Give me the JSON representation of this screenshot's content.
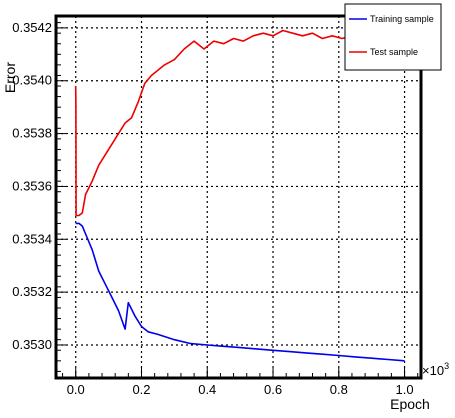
{
  "chart_data": {
    "type": "line",
    "xlabel": "Epoch",
    "ylabel": "Error",
    "x_multiplier_label": "×10",
    "x_multiplier_exponent": "3",
    "xlim": [
      -0.06,
      1.05
    ],
    "ylim": [
      0.352875,
      0.354245
    ],
    "x_ticks": [
      0.0,
      0.2,
      0.4,
      0.6,
      0.8,
      1.0
    ],
    "x_tick_labels": [
      "0.0",
      "0.2",
      "0.4",
      "0.6",
      "0.8",
      "1.0"
    ],
    "y_ticks": [
      0.353,
      0.3532,
      0.3534,
      0.3536,
      0.3538,
      0.354,
      0.3542
    ],
    "y_tick_labels": [
      "0.3530",
      "0.3532",
      "0.3534",
      "0.3536",
      "0.3538",
      "0.3540",
      "0.3542"
    ],
    "grid": true,
    "legend_position": "top-right",
    "series": [
      {
        "name": "Training sample",
        "color": "#0000ee",
        "x": [
          0.0,
          0.01,
          0.02,
          0.03,
          0.05,
          0.07,
          0.09,
          0.11,
          0.13,
          0.15,
          0.16,
          0.18,
          0.2,
          0.22,
          0.25,
          0.3,
          0.35,
          0.4,
          0.45,
          0.5,
          0.55,
          0.6,
          0.65,
          0.7,
          0.75,
          0.8,
          0.85,
          0.9,
          0.95,
          1.0
        ],
        "y": [
          0.35346,
          0.35346,
          0.35345,
          0.35342,
          0.35336,
          0.35328,
          0.35323,
          0.35318,
          0.35313,
          0.35306,
          0.35316,
          0.35311,
          0.35307,
          0.35305,
          0.35304,
          0.35302,
          0.353005,
          0.353,
          0.352995,
          0.35299,
          0.352985,
          0.35298,
          0.352975,
          0.35297,
          0.352965,
          0.35296,
          0.352955,
          0.35295,
          0.352945,
          0.35294
        ]
      },
      {
        "name": "Test sample",
        "color": "#ee0000",
        "x": [
          0.0,
          0.0005,
          0.001,
          0.003,
          0.01,
          0.02,
          0.03,
          0.05,
          0.07,
          0.09,
          0.11,
          0.13,
          0.15,
          0.17,
          0.19,
          0.21,
          0.23,
          0.25,
          0.27,
          0.3,
          0.33,
          0.36,
          0.39,
          0.42,
          0.45,
          0.48,
          0.51,
          0.54,
          0.57,
          0.6,
          0.63,
          0.66,
          0.69,
          0.72,
          0.75,
          0.78,
          0.81,
          0.84,
          0.87,
          0.9,
          0.93,
          0.96,
          1.0
        ],
        "y": [
          0.35398,
          0.35391,
          0.35349,
          0.35349,
          0.35349,
          0.3535,
          0.35357,
          0.35362,
          0.35368,
          0.35372,
          0.35376,
          0.3538,
          0.35384,
          0.35386,
          0.35392,
          0.35399,
          0.35402,
          0.35404,
          0.35406,
          0.35408,
          0.35412,
          0.35415,
          0.35412,
          0.35415,
          0.35414,
          0.35416,
          0.35415,
          0.35417,
          0.35418,
          0.35417,
          0.35419,
          0.35418,
          0.35417,
          0.35418,
          0.35416,
          0.35417,
          0.35416,
          0.35417,
          0.35414,
          0.35416,
          0.35413,
          0.35416,
          0.35417
        ]
      }
    ]
  }
}
